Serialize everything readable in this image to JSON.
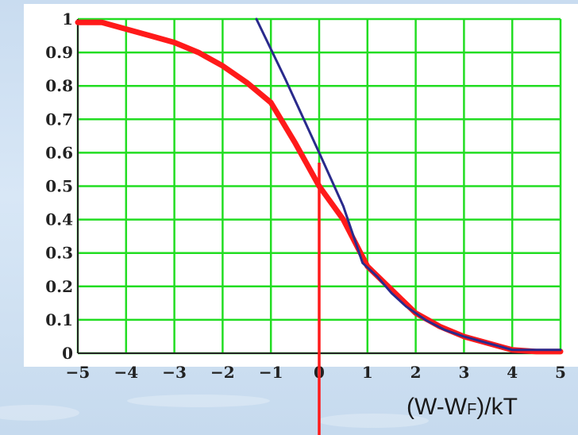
{
  "chart_data": {
    "type": "line",
    "xlim": [
      -5,
      5
    ],
    "ylim": [
      0,
      1
    ],
    "grid": true,
    "x_ticks": [
      "−5",
      "−4",
      "−3",
      "−2",
      "−1",
      "0",
      "1",
      "2",
      "3",
      "4",
      "5"
    ],
    "y_ticks": [
      "0",
      "0.1",
      "0.2",
      "0.3",
      "0.4",
      "0.5",
      "0.6",
      "0.7",
      "0.8",
      "0.9",
      "1"
    ],
    "xlabel": {
      "main": "(W-W",
      "sub": "F",
      "tail": ")/kT"
    },
    "ylabel": "",
    "title": "",
    "colors": {
      "curve": "#ff1a1a",
      "tangent": "#2a2a8c",
      "grid": "#22dd22",
      "marker": "#ff1a1a"
    },
    "series": [
      {
        "color": "#ff1a1a",
        "x": [
          -5,
          -4.5,
          -4,
          -3.5,
          -3,
          -2.5,
          -2,
          -1.5,
          -1,
          -0.5,
          0,
          0.5,
          1,
          1.5,
          2,
          2.5,
          3,
          3.5,
          4,
          4.5,
          5
        ],
        "y": [
          0.99,
          0.99,
          0.97,
          0.95,
          0.93,
          0.9,
          0.86,
          0.81,
          0.75,
          0.63,
          0.5,
          0.4,
          0.26,
          0.19,
          0.12,
          0.08,
          0.05,
          0.03,
          0.01,
          0.005,
          0.005
        ]
      },
      {
        "color": "#2a2a8c",
        "x": [
          -1.3,
          -0.7,
          0,
          0.5,
          0.9,
          1.2,
          1.5,
          1.8,
          2.2,
          2.6,
          3,
          3.5,
          4,
          4.5,
          5
        ],
        "y": [
          1.0,
          0.82,
          0.6,
          0.44,
          0.27,
          0.23,
          0.18,
          0.14,
          0.1,
          0.07,
          0.05,
          0.03,
          0.01,
          0.01,
          0.01
        ]
      }
    ],
    "marker_x": 0
  }
}
